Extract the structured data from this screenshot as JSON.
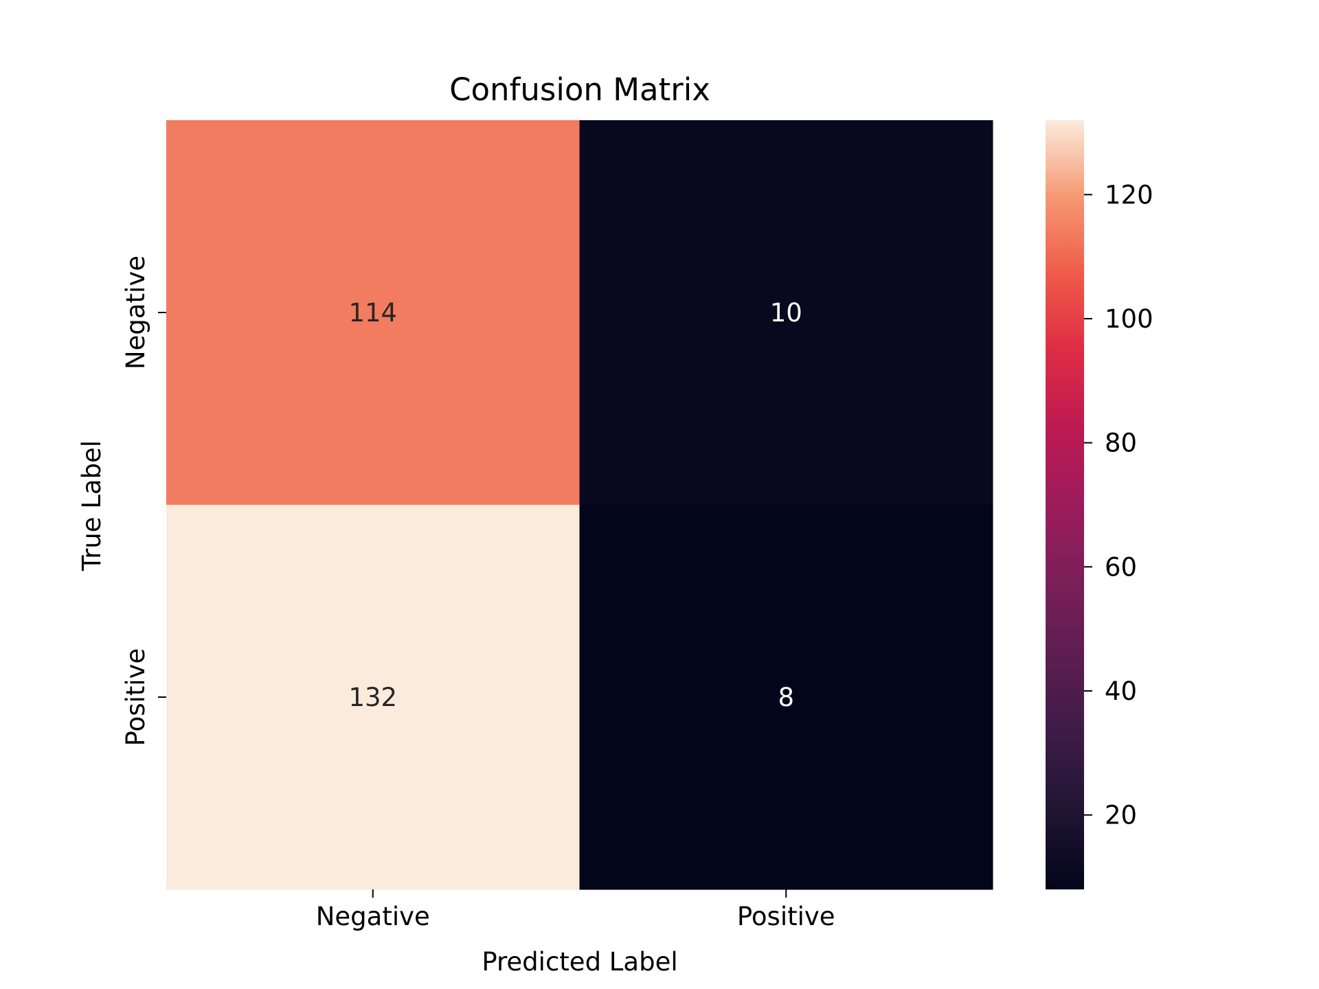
{
  "chart_data": {
    "type": "heatmap",
    "title": "Confusion Matrix",
    "xlabel": "Predicted Label",
    "ylabel": "True Label",
    "x_categories": [
      "Negative",
      "Positive"
    ],
    "y_categories": [
      "Negative",
      "Positive"
    ],
    "values": [
      [
        114,
        10
      ],
      [
        132,
        8
      ]
    ],
    "colorbar": {
      "min": 8,
      "max": 132,
      "ticks": [
        20,
        40,
        60,
        80,
        100,
        120
      ],
      "colormap": "rocket"
    },
    "grid": false
  }
}
